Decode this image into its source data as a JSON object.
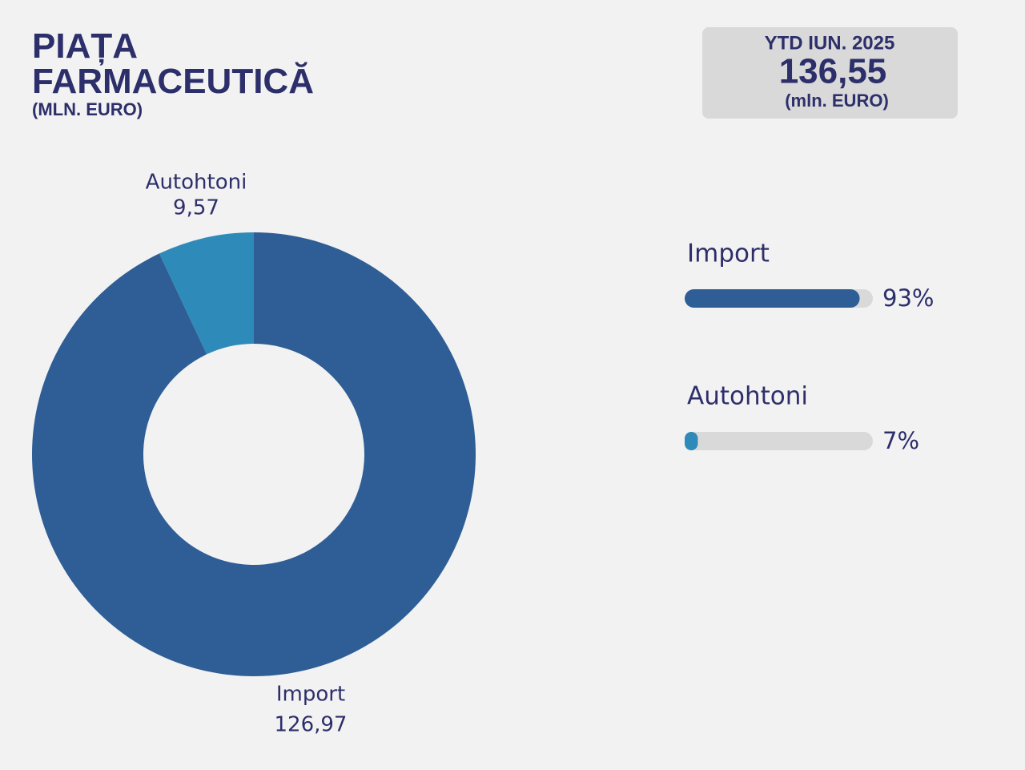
{
  "header": {
    "title": "PIAȚA FARMACEUTICĂ",
    "subtitle": "(MLN. EURO)"
  },
  "kpi": {
    "period": "YTD IUN. 2025",
    "value": "136,55",
    "unit": "(mln. EURO)"
  },
  "chart_data": [
    {
      "type": "pie",
      "donut": true,
      "categories": [
        "Import",
        "Autohtoni"
      ],
      "values": [
        126.97,
        9.57
      ],
      "value_labels": [
        "126,97",
        "9,57"
      ],
      "colors": [
        "#2e5e95",
        "#2e8ab8"
      ]
    },
    {
      "type": "bar",
      "orientation": "horizontal",
      "categories": [
        "Import",
        "Autohtoni"
      ],
      "values": [
        93,
        7
      ],
      "value_labels": [
        "93%",
        "7%"
      ],
      "colors": [
        "#2e5e95",
        "#2e8ab8"
      ],
      "track_color": "#d9d9d9",
      "xlim": [
        0,
        100
      ]
    }
  ]
}
